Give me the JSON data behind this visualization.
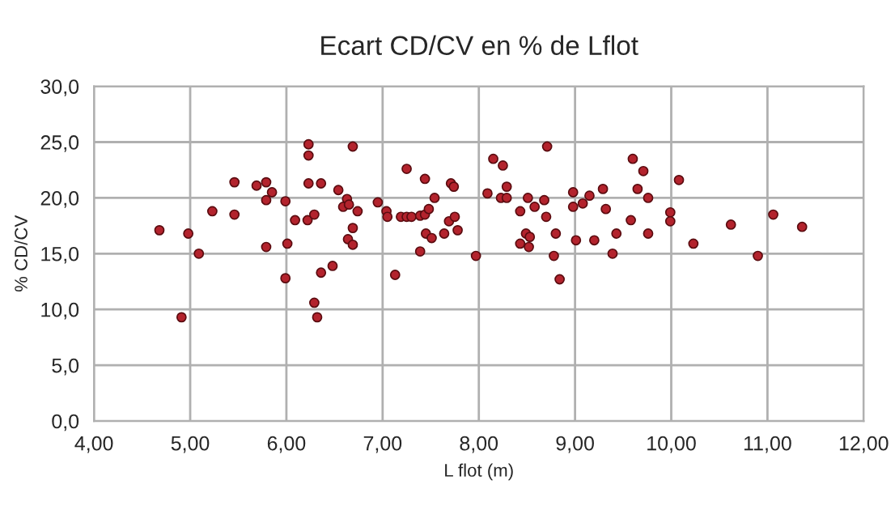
{
  "chart_data": {
    "type": "scatter",
    "title": "Ecart CD/CV en % de Lflot",
    "xlabel": "L flot (m)",
    "ylabel": "% CD/CV",
    "xlim": [
      4,
      12
    ],
    "ylim": [
      0,
      30
    ],
    "xticks": [
      {
        "value": 4,
        "label": "4,00"
      },
      {
        "value": 5,
        "label": "5,00"
      },
      {
        "value": 6,
        "label": "6,00"
      },
      {
        "value": 7,
        "label": "7,00"
      },
      {
        "value": 8,
        "label": "8,00"
      },
      {
        "value": 9,
        "label": "9,00"
      },
      {
        "value": 10,
        "label": "10,00"
      },
      {
        "value": 11,
        "label": "11,00"
      },
      {
        "value": 12,
        "label": "12,00"
      }
    ],
    "yticks": [
      {
        "value": 0,
        "label": "0,0"
      },
      {
        "value": 5,
        "label": "5,0"
      },
      {
        "value": 10,
        "label": "10,0"
      },
      {
        "value": 15,
        "label": "15,0"
      },
      {
        "value": 20,
        "label": "20,0"
      },
      {
        "value": 25,
        "label": "25,0"
      },
      {
        "value": 30,
        "label": "30,0"
      }
    ],
    "grid": true,
    "marker": "circle",
    "series": [
      {
        "color": "#b3232d",
        "x": [
          4.68,
          4.91,
          4.98,
          5.09,
          5.23,
          5.46,
          5.46,
          5.69,
          5.79,
          5.85,
          5.79,
          5.79,
          5.99,
          6.01,
          5.99,
          6.09,
          6.22,
          6.23,
          6.23,
          6.23,
          6.29,
          6.29,
          6.32,
          6.36,
          6.36,
          6.48,
          6.54,
          6.59,
          6.69,
          6.63,
          6.65,
          6.74,
          6.69,
          6.64,
          6.69,
          6.95,
          7.04,
          7.05,
          7.13,
          7.19,
          7.25,
          7.25,
          7.3,
          7.39,
          7.44,
          7.44,
          7.48,
          7.54,
          7.45,
          7.51,
          7.39,
          7.64,
          7.69,
          7.75,
          7.78,
          7.71,
          7.74,
          7.97,
          8.09,
          8.15,
          8.25,
          8.29,
          8.23,
          8.29,
          8.43,
          8.51,
          8.58,
          8.68,
          8.7,
          8.71,
          8.49,
          8.53,
          8.43,
          8.52,
          8.8,
          8.78,
          8.84,
          8.98,
          8.98,
          9.08,
          9.15,
          9.01,
          9.2,
          9.29,
          9.32,
          9.6,
          9.71,
          9.65,
          9.76,
          10.08,
          9.58,
          9.43,
          9.76,
          9.39,
          9.99,
          9.99,
          10.23,
          10.62,
          10.9,
          11.06,
          11.36
        ],
        "values": [
          17.1,
          9.3,
          16.8,
          15.0,
          18.8,
          21.4,
          18.5,
          21.1,
          21.4,
          20.5,
          19.8,
          15.6,
          19.7,
          15.9,
          12.8,
          18.0,
          18.0,
          24.8,
          23.8,
          21.3,
          18.5,
          10.6,
          9.3,
          21.3,
          13.3,
          13.9,
          20.7,
          19.2,
          24.6,
          19.9,
          19.4,
          18.8,
          17.3,
          16.3,
          15.8,
          19.6,
          18.8,
          18.3,
          13.1,
          18.3,
          22.6,
          18.3,
          18.3,
          18.4,
          21.7,
          18.5,
          19.0,
          20.0,
          16.8,
          16.4,
          15.2,
          16.8,
          17.9,
          18.3,
          17.1,
          21.3,
          21.0,
          14.8,
          20.4,
          23.5,
          22.9,
          21.0,
          20.0,
          20.0,
          18.8,
          20.0,
          19.2,
          19.8,
          18.3,
          24.6,
          16.8,
          16.5,
          15.9,
          15.6,
          16.8,
          14.8,
          12.7,
          20.5,
          19.2,
          19.5,
          20.2,
          16.2,
          16.2,
          20.8,
          19.0,
          23.5,
          22.4,
          20.8,
          20.0,
          21.6,
          18.0,
          16.8,
          16.8,
          15.0,
          18.7,
          17.9,
          15.9,
          17.6,
          14.8,
          18.5,
          17.4
        ]
      }
    ]
  }
}
